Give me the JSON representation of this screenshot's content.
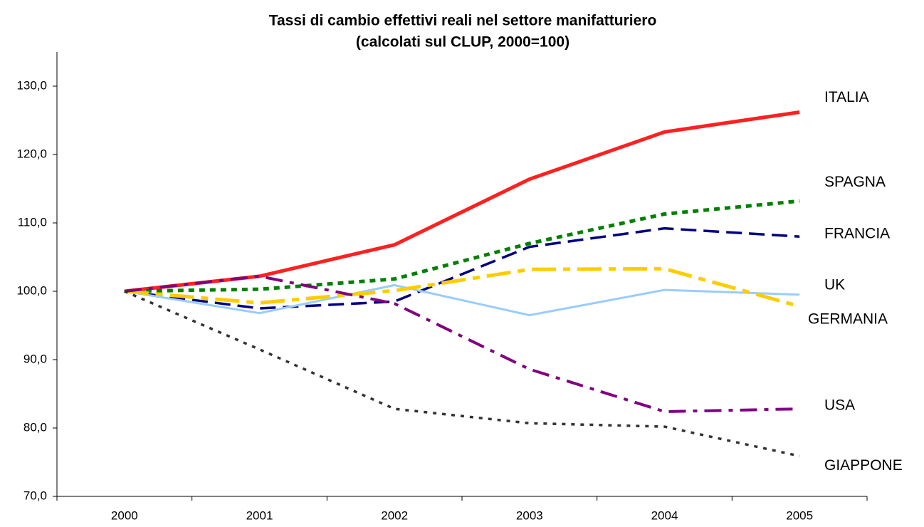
{
  "chart_data": {
    "type": "line",
    "title": "Tassi di cambio effettivi reali nel settore manifatturiero",
    "subtitle": "(calcolati sul CLUP, 2000=100)",
    "categories": [
      "2000",
      "2001",
      "2002",
      "2003",
      "2004",
      "2005"
    ],
    "ylim": [
      70,
      135
    ],
    "yticks": [
      {
        "value": 70,
        "label": "70,0"
      },
      {
        "value": 80,
        "label": "80,0"
      },
      {
        "value": 90,
        "label": "90,0"
      },
      {
        "value": 100,
        "label": "100,0"
      },
      {
        "value": 110,
        "label": "110,0"
      },
      {
        "value": 120,
        "label": "120,0"
      },
      {
        "value": 130,
        "label": "130,0"
      }
    ],
    "grid": false,
    "series": [
      {
        "name": "ITALIA",
        "color": "#ff2020",
        "values": [
          100,
          102.2,
          106.8,
          116.4,
          123.3,
          126.2
        ]
      },
      {
        "name": "SPAGNA",
        "color": "#008000",
        "values": [
          100,
          100.3,
          101.8,
          107,
          111.3,
          113.2
        ]
      },
      {
        "name": "FRANCIA",
        "color": "#000080",
        "values": [
          100,
          97.5,
          98.5,
          106.5,
          109.2,
          108
        ]
      },
      {
        "name": "UK",
        "color": "#99ccff",
        "values": [
          100,
          96.8,
          100.9,
          96.5,
          100.2,
          99.5
        ]
      },
      {
        "name": "GERMANIA",
        "color": "#ffcc00",
        "values": [
          100,
          98.3,
          100.1,
          103.2,
          103.3,
          97.8
        ]
      },
      {
        "name": "USA",
        "color": "#800080",
        "values": [
          100,
          102.2,
          98.2,
          88.6,
          82.4,
          82.8
        ]
      },
      {
        "name": "GIAPPONE",
        "color": "#333333",
        "values": [
          100,
          91.5,
          82.8,
          80.7,
          80.2,
          75.9
        ]
      }
    ]
  }
}
